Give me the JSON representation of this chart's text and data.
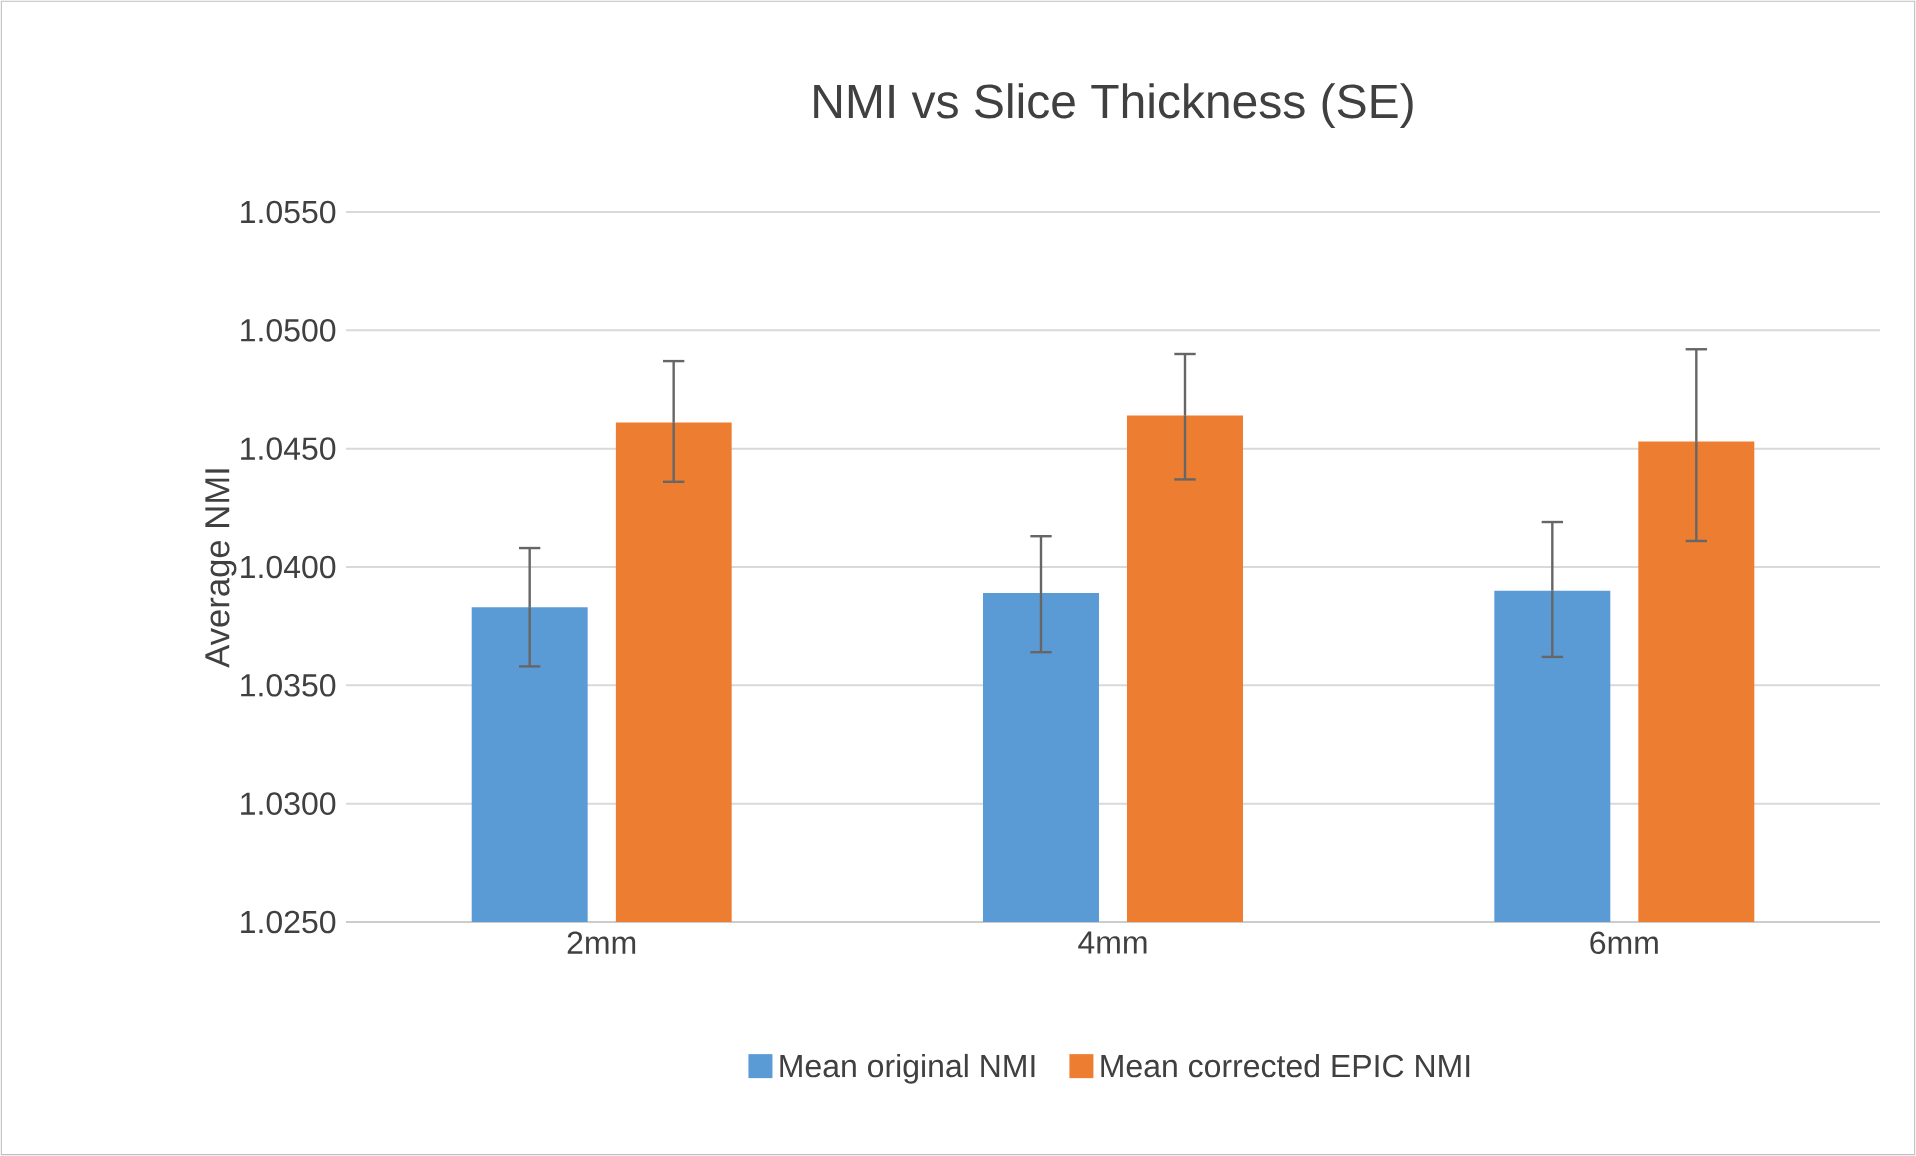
{
  "chart_data": {
    "type": "bar",
    "title": "NMI vs Slice Thickness (SE)",
    "ylabel": "Average NMI",
    "categories": [
      "2mm",
      "4mm",
      "6mm"
    ],
    "series": [
      {
        "name": "Mean original NMI",
        "color": "#5b9bd5",
        "values": [
          1.0383,
          1.0389,
          1.039
        ],
        "errors": [
          [
            1.0358,
            1.0408
          ],
          [
            1.0364,
            1.0413
          ],
          [
            1.0362,
            1.0419
          ]
        ]
      },
      {
        "name": "Mean corrected EPIC NMI",
        "color": "#ed7d31",
        "values": [
          1.0461,
          1.0464,
          1.0453
        ],
        "errors": [
          [
            1.0436,
            1.0487
          ],
          [
            1.0437,
            1.049
          ],
          [
            1.0411,
            1.0492
          ]
        ]
      }
    ],
    "ylim": [
      1.025,
      1.055
    ],
    "yticks": [
      {
        "value": 1.025,
        "label": "1.0250"
      },
      {
        "value": 1.03,
        "label": "1.0300"
      },
      {
        "value": 1.035,
        "label": "1.0350"
      },
      {
        "value": 1.04,
        "label": "1.0400"
      },
      {
        "value": 1.045,
        "label": "1.0450"
      },
      {
        "value": 1.05,
        "label": "1.0500"
      },
      {
        "value": 1.055,
        "label": "1.0550"
      }
    ],
    "grid": "y",
    "legend": "bottom"
  }
}
